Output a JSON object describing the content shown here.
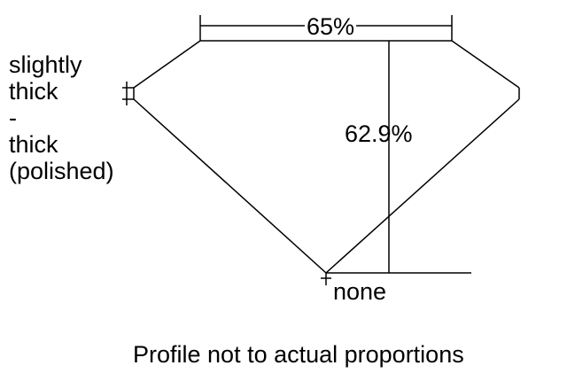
{
  "girdle_label": [
    "slightly",
    "thick",
    "-",
    "thick",
    "(polished)"
  ],
  "table_percent": "65%",
  "depth_percent": "62.9%",
  "culet_label": "none",
  "caption": "Profile not to actual proportions",
  "line_color": "#000000"
}
